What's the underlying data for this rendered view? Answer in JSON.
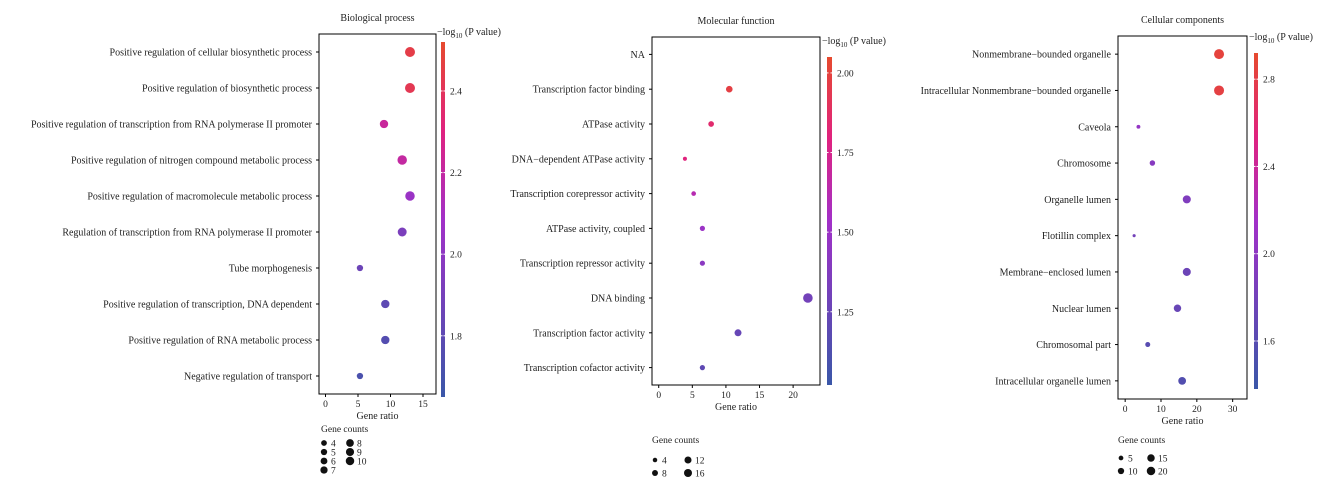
{
  "chart_data": [
    {
      "type": "scatter",
      "title": "Biological process",
      "xlabel": "Gene ratio",
      "xlim": [
        -1,
        17
      ],
      "xticks": [
        0,
        5,
        10,
        15
      ],
      "categories": [
        "Positive regulation of cellular biosynthetic process",
        "Positive regulation of biosynthetic process",
        "Positive regulation of transcription from RNA polymerase II promoter",
        "Positive regulation of nitrogen compound metabolic process",
        "Positive regulation of macromolecule metabolic process",
        "Regulation of transcription from RNA polymerase II promoter",
        "Tube morphogenesis",
        "Positive regulation of transcription, DNA dependent",
        "Positive regulation of RNA metabolic process",
        "Negative regulation of transport"
      ],
      "x": [
        13,
        13,
        9,
        11.8,
        13,
        11.8,
        5.3,
        9.2,
        9.2,
        5.3
      ],
      "gene_counts": [
        10,
        10,
        7,
        9,
        9,
        8,
        4,
        7,
        7,
        4
      ],
      "neg_log10_p": [
        2.45,
        2.42,
        2.22,
        2.2,
        2.05,
        1.92,
        1.86,
        1.8,
        1.76,
        1.72
      ],
      "colorbar": {
        "title_prefix": "−log",
        "title_sub": "10",
        "title_suffix": " (P value)",
        "range": [
          1.65,
          2.52
        ],
        "ticks": [
          1.8,
          2.0,
          2.2,
          2.4
        ],
        "tick_labels": [
          "1.8",
          "2.0",
          "2.2",
          "2.4"
        ]
      },
      "legend": {
        "title": "Gene counts",
        "values": [
          4,
          5,
          6,
          7,
          8,
          9,
          10
        ],
        "labels": [
          "4",
          "5",
          "6",
          "7",
          "8",
          "9",
          "10"
        ],
        "columns": [
          [
            4,
            5,
            6,
            7
          ],
          [
            8,
            9,
            10
          ]
        ]
      }
    },
    {
      "type": "scatter",
      "title": "Molecular function",
      "xlabel": "Gene ratio",
      "xlim": [
        -1,
        24
      ],
      "xticks": [
        0,
        5,
        10,
        15,
        20
      ],
      "categories": [
        "NA",
        "Transcription factor binding",
        "ATPase activity",
        "DNA−dependent ATPase activity",
        "Transcription corepressor activity",
        "ATPase activity, coupled",
        "Transcription repressor activity",
        "DNA binding",
        "Transcription factor activity",
        "Transcription cofactor activity"
      ],
      "x": [
        null,
        10.5,
        7.8,
        3.9,
        5.2,
        6.5,
        6.5,
        22.2,
        11.8,
        6.5
      ],
      "gene_counts": [
        null,
        8,
        6,
        3,
        4,
        5,
        5,
        17,
        9,
        5
      ],
      "neg_log10_p": [
        null,
        1.98,
        1.85,
        1.8,
        1.62,
        1.5,
        1.42,
        1.3,
        1.24,
        1.2
      ],
      "colorbar": {
        "title_prefix": "−log",
        "title_sub": "10",
        "title_suffix": " (P value)",
        "range": [
          1.02,
          2.05
        ],
        "ticks": [
          1.25,
          1.5,
          1.75,
          2.0
        ],
        "tick_labels": [
          "1.25",
          "1.50",
          "1.75",
          "2.00"
        ]
      },
      "legend": {
        "title": "Gene counts",
        "values": [
          4,
          8,
          12,
          16
        ],
        "labels": [
          "4",
          "8",
          "12",
          "16"
        ],
        "columns": [
          [
            4,
            8
          ],
          [
            12,
            16
          ]
        ]
      }
    },
    {
      "type": "scatter",
      "title": "Cellular components",
      "xlabel": "Gene ratio",
      "xlim": [
        -2,
        34
      ],
      "xticks": [
        0,
        10,
        20,
        30
      ],
      "categories": [
        "Nonmembrane−bounded organelle",
        "Intracellular Nonmembrane−bounded organelle",
        "Caveola",
        "Chromosome",
        "Organelle lumen",
        "Flotillin complex",
        "Membrane−enclosed lumen",
        "Nuclear lumen",
        "Chromosomal part",
        "Intracellular organelle lumen"
      ],
      "x": [
        26.2,
        26.2,
        3.7,
        7.6,
        17.2,
        2.5,
        17.2,
        14.6,
        6.3,
        15.9
      ],
      "gene_counts": [
        20,
        20,
        3,
        6,
        13,
        2,
        13,
        11,
        5,
        12
      ],
      "neg_log10_p": [
        2.85,
        2.82,
        2.05,
        1.95,
        1.9,
        1.8,
        1.75,
        1.72,
        1.6,
        1.56
      ],
      "colorbar": {
        "title_prefix": "−log",
        "title_sub": "10",
        "title_suffix": " (P value)",
        "range": [
          1.38,
          2.92
        ],
        "ticks": [
          1.6,
          2.0,
          2.4,
          2.8
        ],
        "tick_labels": [
          "1.6",
          "2.0",
          "2.4",
          "2.8"
        ]
      },
      "legend": {
        "title": "Gene counts",
        "values": [
          5,
          10,
          15,
          20
        ],
        "labels": [
          "5",
          "10",
          "15",
          "20"
        ],
        "columns": [
          [
            5,
            10
          ],
          [
            15,
            20
          ]
        ]
      }
    }
  ]
}
